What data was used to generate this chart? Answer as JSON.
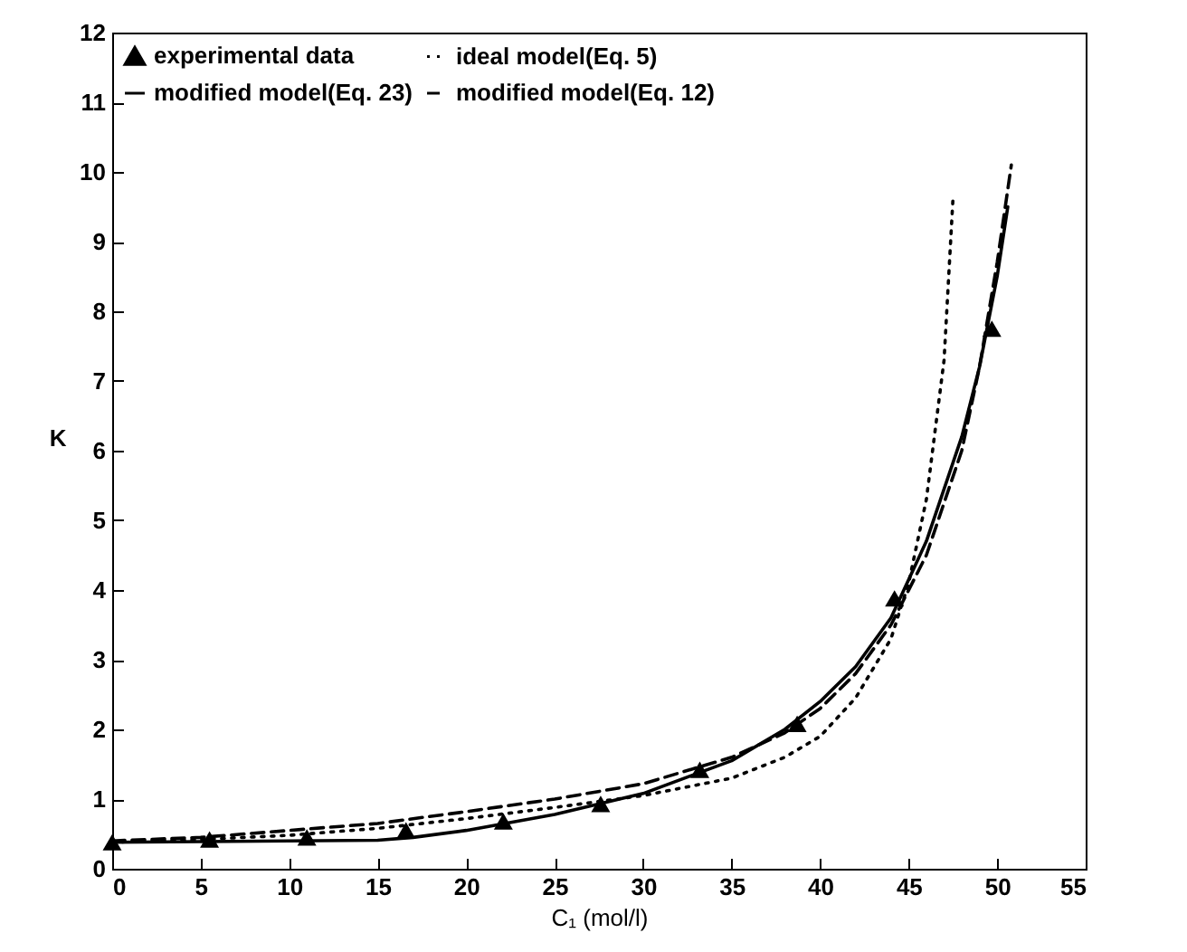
{
  "chart_data": {
    "type": "line",
    "xlabel": "C₁ (mol/l)",
    "ylabel": "K",
    "xlim": [
      0,
      55
    ],
    "xticks": [
      0,
      5,
      10,
      15,
      20,
      25,
      30,
      35,
      40,
      45,
      50,
      55
    ],
    "ylim": [
      0,
      12
    ],
    "yticks": [
      0,
      1,
      2,
      3,
      4,
      5,
      6,
      7,
      8,
      9,
      10,
      11,
      12
    ],
    "grid": false,
    "legend": "top left",
    "series": [
      {
        "name": "experimental data",
        "type": "scatter",
        "marker": "triangle",
        "color": "#000000",
        "x": [
          0,
          5.5,
          11,
          16.6,
          22.1,
          27.6,
          33.2,
          38.7,
          44.2,
          49.7
        ],
        "values": [
          0.38,
          0.42,
          0.45,
          0.55,
          0.68,
          0.93,
          1.42,
          2.08,
          3.88,
          7.75
        ]
      },
      {
        "name": "ideal model(Eq. 5)",
        "type": "line",
        "line_style": "dotted",
        "color": "#000000",
        "x": [
          0,
          5,
          10,
          15,
          20,
          25,
          30,
          35,
          38,
          40,
          42,
          44,
          45,
          46,
          47,
          47.5
        ],
        "values": [
          0.38,
          0.42,
          0.48,
          0.58,
          0.72,
          0.88,
          1.05,
          1.3,
          1.6,
          1.9,
          2.45,
          3.3,
          4.1,
          5.3,
          7.3,
          9.6
        ]
      },
      {
        "name": "modified model(Eq. 23)",
        "type": "line",
        "line_style": "solid",
        "color": "#000000",
        "x": [
          0,
          5,
          10,
          15,
          17,
          20,
          25,
          30,
          35,
          38,
          40,
          42,
          44,
          46,
          48,
          49,
          50,
          50.6
        ],
        "values": [
          0.38,
          0.39,
          0.4,
          0.41,
          0.45,
          0.55,
          0.78,
          1.08,
          1.55,
          2.0,
          2.4,
          2.9,
          3.6,
          4.7,
          6.2,
          7.2,
          8.5,
          9.5
        ]
      },
      {
        "name": "modified model(Eq. 12)",
        "type": "line",
        "line_style": "dashed",
        "color": "#000000",
        "x": [
          0,
          5,
          10,
          15,
          20,
          25,
          30,
          35,
          38,
          40,
          42,
          44,
          46,
          48,
          49,
          50,
          50.8
        ],
        "values": [
          0.4,
          0.45,
          0.55,
          0.65,
          0.82,
          1.0,
          1.22,
          1.6,
          1.95,
          2.3,
          2.8,
          3.5,
          4.5,
          6.0,
          7.2,
          8.7,
          10.1
        ]
      }
    ]
  }
}
